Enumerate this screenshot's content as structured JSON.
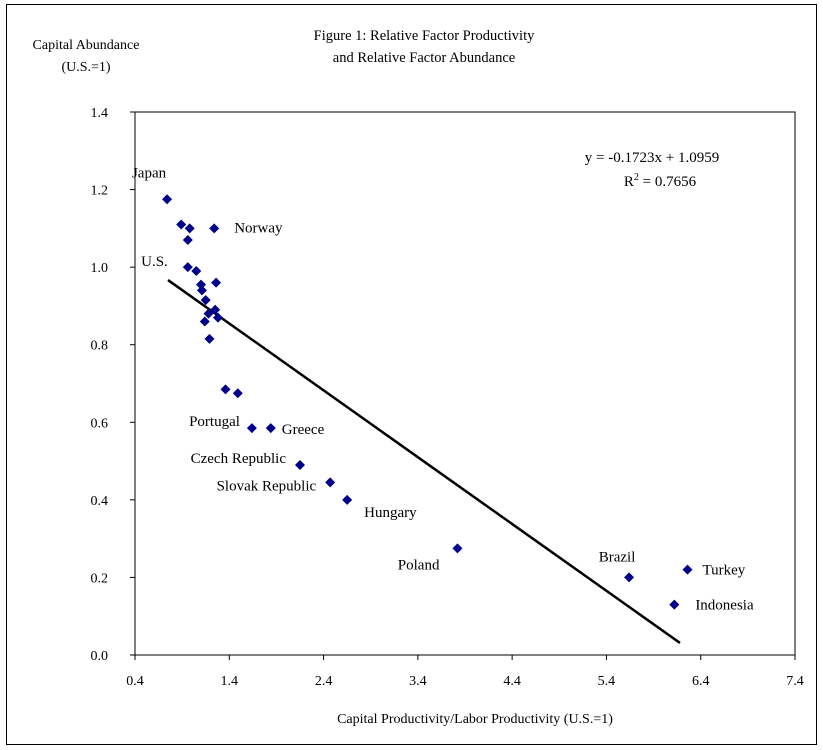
{
  "chart_data": {
    "type": "scatter",
    "title": [
      "Figure 1: Relative Factor Productivity",
      "and Relative Factor Abundance"
    ],
    "xlabel": "Capital Productivity/Labor Productivity (U.S.=1)",
    "ylabel": [
      "Capital Abundance",
      "(U.S.=1)"
    ],
    "xlim": [
      0.4,
      7.4
    ],
    "ylim": [
      0.0,
      1.4
    ],
    "x_ticks": [
      "0.4",
      "1.4",
      "2.4",
      "3.4",
      "4.4",
      "5.4",
      "6.4",
      "7.4"
    ],
    "y_ticks": [
      "0.0",
      "0.2",
      "0.4",
      "0.6",
      "0.8",
      "1.0",
      "1.2",
      "1.4"
    ],
    "grid": false,
    "marker_color": "#00008B",
    "line_color": "#000000",
    "trendline": {
      "slope": -0.1723,
      "intercept": 1.0959,
      "x_range": [
        0.75,
        6.18
      ],
      "equation": "y = -0.1723x + 1.0959",
      "r2_prefix": "R",
      "r2_exponent": "2",
      "r2_value": " = 0.7656"
    },
    "points": [
      {
        "x": 0.74,
        "y": 1.175,
        "label": "Japan"
      },
      {
        "x": 0.89,
        "y": 1.11
      },
      {
        "x": 0.98,
        "y": 1.1
      },
      {
        "x": 0.96,
        "y": 1.07
      },
      {
        "x": 1.24,
        "y": 1.1,
        "label": "Norway"
      },
      {
        "x": 0.96,
        "y": 1.0,
        "label": "U.S."
      },
      {
        "x": 1.05,
        "y": 0.99
      },
      {
        "x": 1.1,
        "y": 0.955
      },
      {
        "x": 1.11,
        "y": 0.94
      },
      {
        "x": 1.26,
        "y": 0.96
      },
      {
        "x": 1.15,
        "y": 0.915
      },
      {
        "x": 1.25,
        "y": 0.89
      },
      {
        "x": 1.18,
        "y": 0.88
      },
      {
        "x": 1.14,
        "y": 0.86
      },
      {
        "x": 1.28,
        "y": 0.87
      },
      {
        "x": 1.19,
        "y": 0.815
      },
      {
        "x": 1.36,
        "y": 0.685
      },
      {
        "x": 1.49,
        "y": 0.675
      },
      {
        "x": 1.64,
        "y": 0.585,
        "label": "Portugal"
      },
      {
        "x": 1.84,
        "y": 0.585,
        "label": "Greece"
      },
      {
        "x": 2.15,
        "y": 0.49,
        "label": "Czech Republic"
      },
      {
        "x": 2.47,
        "y": 0.445,
        "label": "Slovak Republic"
      },
      {
        "x": 2.65,
        "y": 0.4,
        "label": "Hungary"
      },
      {
        "x": 3.82,
        "y": 0.275,
        "label": "Poland"
      },
      {
        "x": 5.64,
        "y": 0.2,
        "label": "Brazil"
      },
      {
        "x": 6.26,
        "y": 0.22,
        "label": "Turkey"
      },
      {
        "x": 6.12,
        "y": 0.13,
        "label": "Indonesia"
      }
    ]
  }
}
